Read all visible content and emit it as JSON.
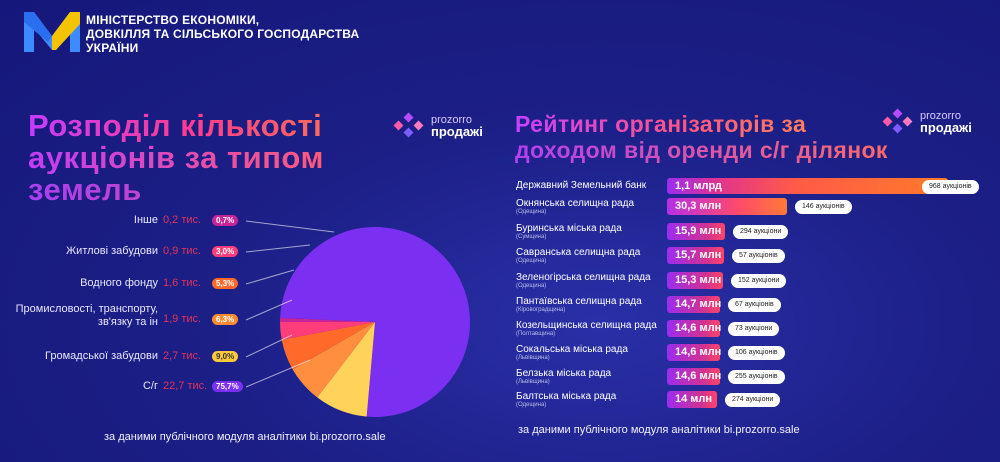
{
  "header": {
    "ministry_lines": [
      "МІНІСТЕРСТВО ЕКОНОМІКИ,",
      "ДОВКІЛЛЯ ТА СІЛЬСЬКОГО ГОСПОДАРСТВА",
      "УКРАЇНИ"
    ]
  },
  "brand": {
    "line1": "prozorro",
    "line2": "продажі"
  },
  "colors": {
    "background": "#1c1f86",
    "pie": [
      "#7b2ff0",
      "#ffd35a",
      "#ff8f3e",
      "#ff6a2a",
      "#ff3d7a",
      "#c8249a"
    ],
    "value_text": "#e0335a"
  },
  "chart_data": [
    {
      "type": "pie",
      "title": "Розподіл кількості аукціонів за типом земель",
      "title_lines": [
        "Розподіл кількості",
        "аукціонів за типом",
        "земель"
      ],
      "slices": [
        {
          "label": "С/г",
          "value_text": "22,7 тис.",
          "value": 22.7,
          "percent": 75.7,
          "percent_text": "75,7%"
        },
        {
          "label": "Громадської забудови",
          "value_text": "2,7 тис.",
          "value": 2.7,
          "percent": 9.0,
          "percent_text": "9,0%"
        },
        {
          "label": "Промисловості, транспорту, зв'язку та ін",
          "value_text": "1,9 тис.",
          "value": 1.9,
          "percent": 6.3,
          "percent_text": "6,3%"
        },
        {
          "label": "Водного фонду",
          "value_text": "1,6 тис.",
          "value": 1.6,
          "percent": 5.3,
          "percent_text": "5,3%"
        },
        {
          "label": "Житлові забудови",
          "value_text": "0,9 тис.",
          "value": 0.9,
          "percent": 3.0,
          "percent_text": "3,0%"
        },
        {
          "label": "Інше",
          "value_text": "0,2 тис.",
          "value": 0.2,
          "percent": 0.7,
          "percent_text": "0,7%"
        }
      ],
      "source": "за даними публічного модуля аналітики bi.prozorro.sale"
    },
    {
      "type": "bar",
      "title": "Рейтинг організаторів за доходом від оренди с/г ділянок",
      "title_lines": [
        "Рейтинг організаторів за",
        "доходом від оренди с/г ділянок"
      ],
      "items": [
        {
          "name": "Державний Земельний банк",
          "region": "",
          "value_uah_mln": 1100,
          "value_text": "1,1 млрд",
          "auctions_text": "968 аукціонів"
        },
        {
          "name": "Окнянська селищна рада",
          "region": "(Одещина)",
          "value_uah_mln": 30.3,
          "value_text": "30,3 млн",
          "auctions_text": "146 аукціонів"
        },
        {
          "name": "Буринська міська рада",
          "region": "(Сумщина)",
          "value_uah_mln": 15.9,
          "value_text": "15,9 млн",
          "auctions_text": "294 аукціони"
        },
        {
          "name": "Савранська селищна рада",
          "region": "(Одещина)",
          "value_uah_mln": 15.7,
          "value_text": "15,7 млн",
          "auctions_text": "57 аукціонів"
        },
        {
          "name": "Зеленогірська селищна рада",
          "region": "(Одещина)",
          "value_uah_mln": 15.3,
          "value_text": "15,3 млн",
          "auctions_text": "152 аукціони"
        },
        {
          "name": "Пантаївська селищна рада",
          "region": "(Кіровоградщина)",
          "value_uah_mln": 14.7,
          "value_text": "14,7 млн",
          "auctions_text": "67 аукціонів"
        },
        {
          "name": "Козельщинська селищна рада",
          "region": "(Полтавщина)",
          "value_uah_mln": 14.6,
          "value_text": "14,6 млн",
          "auctions_text": "73 аукціони"
        },
        {
          "name": "Сокальська міська рада",
          "region": "(Львівщина)",
          "value_uah_mln": 14.6,
          "value_text": "14,6 млн",
          "auctions_text": "106 аукціонів"
        },
        {
          "name": "Белзька міська рада",
          "region": "(Львівщина)",
          "value_uah_mln": 14.6,
          "value_text": "14,6 млн",
          "auctions_text": "255 аукціонів"
        },
        {
          "name": "Балтська міська рада",
          "region": "(Одещина)",
          "value_uah_mln": 14,
          "value_text": "14 млн",
          "auctions_text": "274 аукціони"
        }
      ],
      "source": "за даними публічного модуля аналітики bi.prozorro.sale"
    }
  ]
}
